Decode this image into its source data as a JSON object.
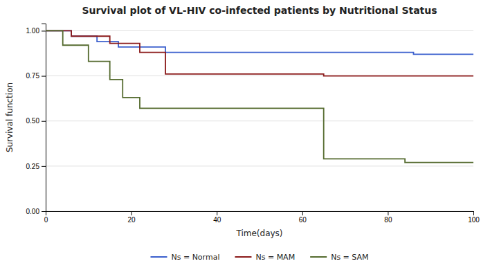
{
  "chart_data": {
    "type": "line",
    "title": "Survival plot of VL-HIV co-infected patients by Nutritional Status",
    "x_label": "Time(days)",
    "y_label": "Survival function",
    "xlim": [
      0,
      100
    ],
    "xticks": [
      0,
      20,
      40,
      60,
      80,
      100
    ],
    "ylim": [
      0.0,
      1.04
    ],
    "yticks": [
      {
        "value": 0.0,
        "label": "0.00"
      },
      {
        "value": 0.25,
        "label": "0.25"
      },
      {
        "value": 0.5,
        "label": "0.50"
      },
      {
        "value": 0.75,
        "label": "0.75"
      },
      {
        "value": 1.0,
        "label": "1.00"
      }
    ],
    "grid": true,
    "legend": "bottom",
    "series": [
      {
        "name": "Ns = Normal",
        "color": "#3a5fcd",
        "x": [
          0,
          6,
          6,
          12,
          12,
          17,
          17,
          28,
          28,
          86,
          86,
          100
        ],
        "values": [
          1.0,
          1.0,
          0.97,
          0.97,
          0.94,
          0.94,
          0.91,
          0.91,
          0.88,
          0.88,
          0.87,
          0.87
        ]
      },
      {
        "name": "Ns = MAM",
        "color": "#8b1a1a",
        "x": [
          0,
          6,
          6,
          15,
          15,
          22,
          22,
          28,
          28,
          65,
          65,
          100
        ],
        "values": [
          1.0,
          1.0,
          0.97,
          0.97,
          0.93,
          0.93,
          0.88,
          0.88,
          0.76,
          0.76,
          0.75,
          0.75
        ]
      },
      {
        "name": "Ns = SAM",
        "color": "#556b2f",
        "x": [
          0,
          4,
          4,
          10,
          10,
          15,
          15,
          18,
          18,
          22,
          22,
          65,
          65,
          84,
          84,
          100
        ],
        "values": [
          1.0,
          1.0,
          0.92,
          0.92,
          0.83,
          0.83,
          0.73,
          0.73,
          0.63,
          0.63,
          0.57,
          0.57,
          0.29,
          0.29,
          0.27,
          0.27
        ]
      }
    ]
  }
}
